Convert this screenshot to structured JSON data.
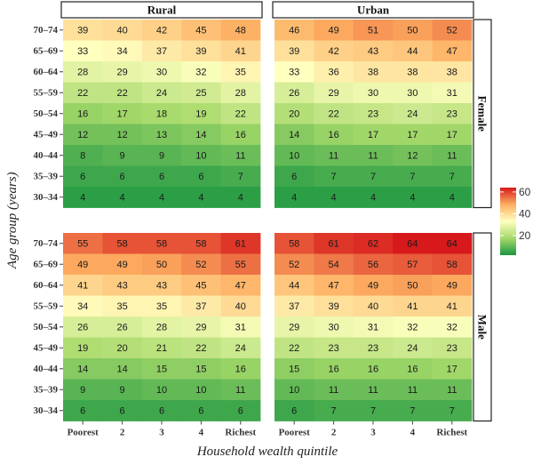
{
  "chart_data": {
    "type": "heatmap",
    "xlabel": "Household wealth quintile",
    "ylabel": "Age group (years)",
    "x_categories": [
      "Poorest",
      "2",
      "3",
      "4",
      "Richest"
    ],
    "y_categories": [
      "70–74",
      "65–69",
      "60–64",
      "55–59",
      "50–54",
      "45–49",
      "40–44",
      "35–39",
      "30–34"
    ],
    "columns": [
      "Rural",
      "Urban"
    ],
    "rows": [
      "Female",
      "Male"
    ],
    "color_scale": {
      "min": 2,
      "max": 64,
      "ticks": [
        20,
        40,
        60
      ],
      "colors": [
        "#1a9641",
        "#a6d96a",
        "#ffffbf",
        "#fdae61",
        "#d7191c"
      ]
    },
    "panels": [
      {
        "column": "Rural",
        "row": "Female",
        "values": [
          [
            39,
            40,
            42,
            45,
            48
          ],
          [
            33,
            34,
            37,
            39,
            41
          ],
          [
            28,
            29,
            30,
            32,
            35
          ],
          [
            22,
            22,
            24,
            25,
            28
          ],
          [
            16,
            17,
            18,
            19,
            22
          ],
          [
            12,
            12,
            13,
            14,
            16
          ],
          [
            8,
            9,
            9,
            10,
            11
          ],
          [
            6,
            6,
            6,
            6,
            7
          ],
          [
            4,
            4,
            4,
            4,
            4
          ]
        ]
      },
      {
        "column": "Urban",
        "row": "Female",
        "values": [
          [
            46,
            49,
            51,
            50,
            52
          ],
          [
            39,
            42,
            43,
            44,
            47
          ],
          [
            33,
            36,
            38,
            38,
            38
          ],
          [
            26,
            29,
            30,
            30,
            31
          ],
          [
            20,
            22,
            23,
            24,
            23
          ],
          [
            14,
            16,
            17,
            17,
            17
          ],
          [
            10,
            11,
            11,
            12,
            11
          ],
          [
            6,
            7,
            7,
            7,
            7
          ],
          [
            4,
            4,
            4,
            4,
            4
          ]
        ]
      },
      {
        "column": "Rural",
        "row": "Male",
        "values": [
          [
            55,
            58,
            58,
            58,
            61
          ],
          [
            49,
            49,
            50,
            52,
            55
          ],
          [
            41,
            43,
            43,
            45,
            47
          ],
          [
            34,
            35,
            35,
            37,
            40
          ],
          [
            26,
            26,
            28,
            29,
            31
          ],
          [
            19,
            20,
            21,
            22,
            24
          ],
          [
            14,
            14,
            15,
            15,
            16
          ],
          [
            9,
            9,
            10,
            10,
            11
          ],
          [
            6,
            6,
            6,
            6,
            6
          ]
        ]
      },
      {
        "column": "Urban",
        "row": "Male",
        "values": [
          [
            58,
            61,
            62,
            64,
            64
          ],
          [
            52,
            54,
            56,
            57,
            58
          ],
          [
            44,
            47,
            49,
            50,
            49
          ],
          [
            37,
            39,
            40,
            41,
            41
          ],
          [
            29,
            30,
            31,
            32,
            32
          ],
          [
            22,
            23,
            23,
            24,
            23
          ],
          [
            15,
            16,
            16,
            16,
            17
          ],
          [
            10,
            11,
            11,
            11,
            11
          ],
          [
            6,
            7,
            7,
            7,
            7
          ]
        ]
      }
    ]
  }
}
